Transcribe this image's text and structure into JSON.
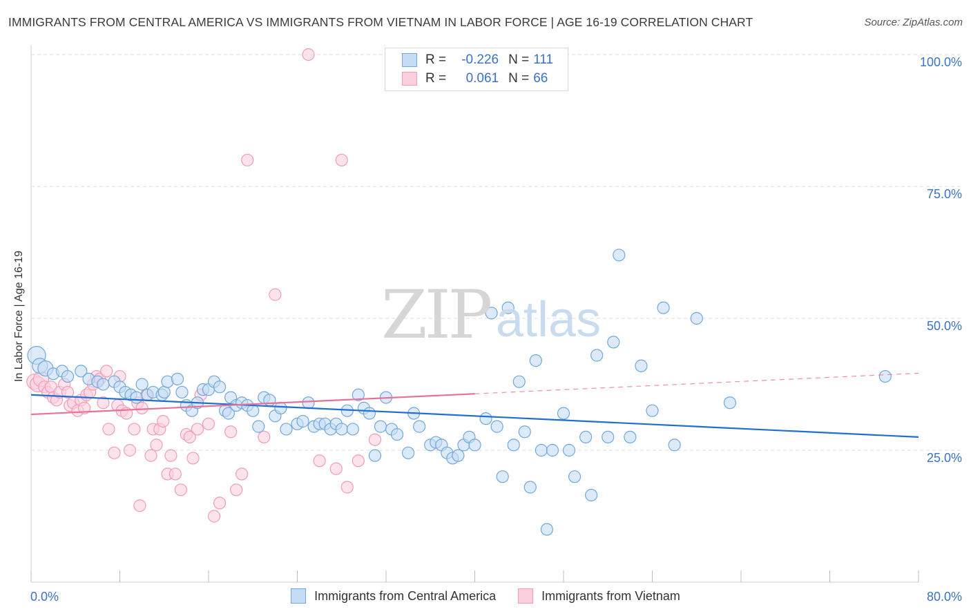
{
  "title": "IMMIGRANTS FROM CENTRAL AMERICA VS IMMIGRANTS FROM VIETNAM IN LABOR FORCE | AGE 16-19 CORRELATION CHART",
  "source": "Source: ZipAtlas.com",
  "watermark": {
    "zip": "ZIP",
    "atlas": "atlas"
  },
  "stats": [
    {
      "r_label": "R =",
      "r_value": "-0.226",
      "n_label": "N =",
      "n_value": "111"
    },
    {
      "r_label": "R =",
      "r_value": "0.061",
      "n_label": "N =",
      "n_value": "66"
    }
  ],
  "colors": {
    "blue": "#6fa8dc",
    "blue_fill": "#c6dcf5",
    "blue_line": "#1f6fd0",
    "pink": "#f19cb8",
    "pink_fill": "#fbd0de",
    "pink_line": "#e8709a",
    "value_text": "#3a72c4",
    "grid": "#dddddd"
  },
  "chart_data": {
    "type": "scatter",
    "title": "IMMIGRANTS FROM CENTRAL AMERICA VS IMMIGRANTS FROM VIETNAM IN LABOR FORCE | AGE 16-19 CORRELATION CHART",
    "xlabel": "",
    "ylabel": "In Labor Force | Age 16-19",
    "xlim": [
      0,
      80
    ],
    "ylim": [
      0,
      100
    ],
    "x_tick_labels": [
      "0.0%",
      "80.0%"
    ],
    "y_tick_labels": [
      "25.0%",
      "50.0%",
      "75.0%",
      "100.0%"
    ],
    "y_ticks": [
      25,
      50,
      75,
      100
    ],
    "grid": "horizontal dashed",
    "legend_position": "bottom-center",
    "series": [
      {
        "name": "Immigrants from Central America",
        "color": "#6fa8dc",
        "trend": {
          "x0": 0,
          "y0": 35.5,
          "x1": 80,
          "y1": 27.5
        },
        "points": [
          [
            0.5,
            43
          ],
          [
            0.8,
            41
          ],
          [
            1.3,
            40.5
          ],
          [
            2,
            39.5
          ],
          [
            2.8,
            40
          ],
          [
            3.3,
            39
          ],
          [
            4.5,
            40
          ],
          [
            5.2,
            38.5
          ],
          [
            6,
            38
          ],
          [
            6.5,
            37.5
          ],
          [
            7.5,
            38
          ],
          [
            8,
            37
          ],
          [
            8.5,
            36
          ],
          [
            9,
            35.5
          ],
          [
            9.5,
            35
          ],
          [
            10,
            37.5
          ],
          [
            10.5,
            35.5
          ],
          [
            11,
            36
          ],
          [
            11.8,
            35.5
          ],
          [
            12,
            36
          ],
          [
            12.3,
            38
          ],
          [
            13.2,
            38.5
          ],
          [
            13.6,
            36
          ],
          [
            14,
            33.5
          ],
          [
            14.5,
            32.5
          ],
          [
            15,
            34
          ],
          [
            15.5,
            36.5
          ],
          [
            16,
            36.5
          ],
          [
            16.5,
            38
          ],
          [
            17,
            37
          ],
          [
            17.5,
            32.5
          ],
          [
            17.8,
            32
          ],
          [
            18,
            35
          ],
          [
            18.5,
            33.5
          ],
          [
            19,
            34
          ],
          [
            19.5,
            33.5
          ],
          [
            20,
            32.5
          ],
          [
            20.5,
            29.5
          ],
          [
            21,
            35
          ],
          [
            21.5,
            34.5
          ],
          [
            22,
            31.5
          ],
          [
            22.5,
            33
          ],
          [
            23,
            29
          ],
          [
            24,
            30
          ],
          [
            24.5,
            30.5
          ],
          [
            25,
            34
          ],
          [
            25.5,
            29.5
          ],
          [
            26,
            30
          ],
          [
            26.5,
            30
          ],
          [
            27,
            29
          ],
          [
            27.5,
            30
          ],
          [
            28,
            29
          ],
          [
            28.5,
            32.5
          ],
          [
            29,
            29
          ],
          [
            29.5,
            35.5
          ],
          [
            30,
            33
          ],
          [
            30.5,
            32
          ],
          [
            31,
            24
          ],
          [
            31.5,
            29.5
          ],
          [
            32,
            35
          ],
          [
            32.5,
            29
          ],
          [
            33,
            28
          ],
          [
            34,
            24.5
          ],
          [
            34.5,
            32
          ],
          [
            35,
            29.5
          ],
          [
            36,
            26
          ],
          [
            36.5,
            26.5
          ],
          [
            37,
            26
          ],
          [
            37.5,
            24.5
          ],
          [
            38,
            23.5
          ],
          [
            38.5,
            24
          ],
          [
            39,
            26
          ],
          [
            39.5,
            27.5
          ],
          [
            40,
            26
          ],
          [
            41,
            31
          ],
          [
            41.5,
            51
          ],
          [
            42,
            29.5
          ],
          [
            42.5,
            20
          ],
          [
            43,
            52
          ],
          [
            43.5,
            26
          ],
          [
            44,
            38
          ],
          [
            44.5,
            28.5
          ],
          [
            45,
            18
          ],
          [
            45.5,
            42
          ],
          [
            46,
            25
          ],
          [
            46.5,
            10
          ],
          [
            47,
            25
          ],
          [
            48,
            32
          ],
          [
            48.5,
            25
          ],
          [
            49,
            20
          ],
          [
            50,
            27.5
          ],
          [
            50.5,
            16.5
          ],
          [
            51,
            43
          ],
          [
            52,
            27.5
          ],
          [
            52.5,
            45.5
          ],
          [
            53,
            62
          ],
          [
            54,
            27.5
          ],
          [
            55,
            41
          ],
          [
            56,
            32.5
          ],
          [
            57,
            52
          ],
          [
            58,
            26
          ],
          [
            60,
            50
          ],
          [
            63,
            34
          ],
          [
            77,
            39
          ]
        ]
      },
      {
        "name": "Immigrants from Vietnam",
        "color": "#f19cb8",
        "trend": {
          "x0": 0,
          "y0": 31.8,
          "x1": 80,
          "y1": 39.6
        },
        "points": [
          [
            0.3,
            38
          ],
          [
            0.6,
            37.5
          ],
          [
            0.9,
            38.5
          ],
          [
            1.2,
            37
          ],
          [
            1.5,
            36
          ],
          [
            1.8,
            37
          ],
          [
            2,
            35
          ],
          [
            2.3,
            34.5
          ],
          [
            2.6,
            36
          ],
          [
            3,
            37.5
          ],
          [
            3.3,
            36
          ],
          [
            3.5,
            33.5
          ],
          [
            3.8,
            34
          ],
          [
            4.2,
            32.5
          ],
          [
            4.5,
            34.5
          ],
          [
            4.8,
            33
          ],
          [
            5,
            35.5
          ],
          [
            5.3,
            36
          ],
          [
            5.6,
            37.5
          ],
          [
            5.9,
            39
          ],
          [
            6.2,
            38.5
          ],
          [
            6.5,
            34
          ],
          [
            6.8,
            40
          ],
          [
            7,
            29
          ],
          [
            7.5,
            24.5
          ],
          [
            7.8,
            33.5
          ],
          [
            8,
            39
          ],
          [
            8.2,
            32.5
          ],
          [
            8.6,
            32
          ],
          [
            8.9,
            25
          ],
          [
            9.3,
            29
          ],
          [
            9.6,
            34
          ],
          [
            9.8,
            14.5
          ],
          [
            10,
            33
          ],
          [
            10.4,
            35.5
          ],
          [
            10.8,
            24
          ],
          [
            11,
            29
          ],
          [
            11.3,
            26
          ],
          [
            11.6,
            29
          ],
          [
            11.9,
            30.5
          ],
          [
            12.3,
            20.5
          ],
          [
            12.6,
            24
          ],
          [
            13,
            20.5
          ],
          [
            13.5,
            17.5
          ],
          [
            14,
            28
          ],
          [
            14.3,
            27.5
          ],
          [
            14.6,
            23.5
          ],
          [
            15,
            29
          ],
          [
            15.3,
            35.5
          ],
          [
            16,
            30
          ],
          [
            16.5,
            12.5
          ],
          [
            17,
            15
          ],
          [
            18,
            28.5
          ],
          [
            18.5,
            17.5
          ],
          [
            19,
            20.5
          ],
          [
            19.5,
            80
          ],
          [
            21,
            27.5
          ],
          [
            22,
            54.5
          ],
          [
            25,
            100
          ],
          [
            26,
            23
          ],
          [
            28,
            80
          ],
          [
            27.5,
            21.5
          ],
          [
            28.5,
            18
          ],
          [
            29.5,
            23
          ],
          [
            31,
            27
          ]
        ]
      }
    ]
  },
  "legend": {
    "blue_label": "Immigrants from Central America",
    "pink_label": "Immigrants from Vietnam"
  }
}
